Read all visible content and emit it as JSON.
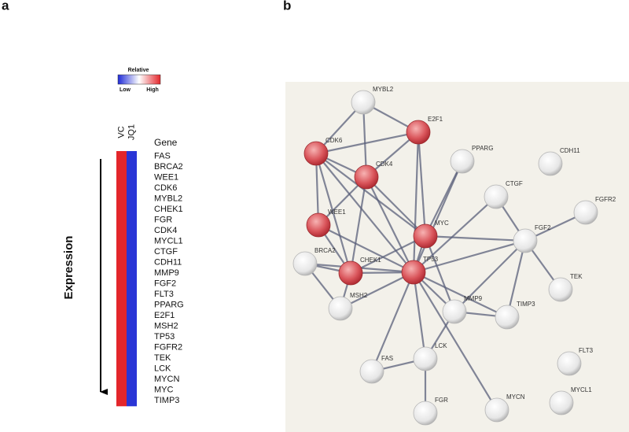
{
  "panel_a": {
    "label": "a",
    "legend": {
      "title": "Relative",
      "low": "Low",
      "high": "High"
    },
    "columns": [
      "VC",
      "JQ1"
    ],
    "column_colors": [
      "#e3262b",
      "#2a35d6"
    ],
    "gene_header": "Gene",
    "genes": [
      "FAS",
      "BRCA2",
      "WEE1",
      "CDK6",
      "MYBL2",
      "CHEK1",
      "FGR",
      "CDK4",
      "MYCL1",
      "CTGF",
      "CDH11",
      "MMP9",
      "FGF2",
      "FLT3",
      "PPARG",
      "E2F1",
      "MSH2",
      "TP53",
      "FGFR2",
      "TEK",
      "LCK",
      "MYCN",
      "MYC",
      "TIMP3"
    ],
    "axis_label": "Expression"
  },
  "panel_b": {
    "label": "b",
    "nodes": [
      {
        "label": "MYBL2",
        "highlighted": false
      },
      {
        "label": "E2F1",
        "highlighted": true
      },
      {
        "label": "CDK6",
        "highlighted": true
      },
      {
        "label": "CDK4",
        "highlighted": true
      },
      {
        "label": "PPARG",
        "highlighted": false
      },
      {
        "label": "CDH11",
        "highlighted": false
      },
      {
        "label": "CTGF",
        "highlighted": false
      },
      {
        "label": "FGFR2",
        "highlighted": false
      },
      {
        "label": "WEE1",
        "highlighted": true
      },
      {
        "label": "MYC",
        "highlighted": true
      },
      {
        "label": "FGF2",
        "highlighted": false
      },
      {
        "label": "BRCA2",
        "highlighted": false
      },
      {
        "label": "CHEK1",
        "highlighted": true
      },
      {
        "label": "TP53",
        "highlighted": true
      },
      {
        "label": "TEK",
        "highlighted": false
      },
      {
        "label": "MSH2",
        "highlighted": false
      },
      {
        "label": "MMP9",
        "highlighted": false
      },
      {
        "label": "TIMP3",
        "highlighted": false
      },
      {
        "label": "LCK",
        "highlighted": false
      },
      {
        "label": "FLT3",
        "highlighted": false
      },
      {
        "label": "FAS",
        "highlighted": false
      },
      {
        "label": "MYCN",
        "highlighted": false
      },
      {
        "label": "MYCL1",
        "highlighted": false
      },
      {
        "label": "FGR",
        "highlighted": false
      }
    ],
    "edges": [
      [
        0,
        1
      ],
      [
        0,
        2
      ],
      [
        0,
        3
      ],
      [
        1,
        2
      ],
      [
        1,
        3
      ],
      [
        1,
        9
      ],
      [
        1,
        13
      ],
      [
        2,
        3
      ],
      [
        2,
        8
      ],
      [
        2,
        13
      ],
      [
        2,
        12
      ],
      [
        2,
        9
      ],
      [
        3,
        8
      ],
      [
        3,
        13
      ],
      [
        3,
        9
      ],
      [
        3,
        12
      ],
      [
        4,
        13
      ],
      [
        4,
        9
      ],
      [
        6,
        13
      ],
      [
        6,
        10
      ],
      [
        7,
        10
      ],
      [
        9,
        13
      ],
      [
        9,
        10
      ],
      [
        9,
        16
      ],
      [
        9,
        12
      ],
      [
        10,
        13
      ],
      [
        10,
        14
      ],
      [
        10,
        16
      ],
      [
        10,
        17
      ],
      [
        8,
        12
      ],
      [
        8,
        13
      ],
      [
        11,
        12
      ],
      [
        11,
        13
      ],
      [
        11,
        15
      ],
      [
        12,
        13
      ],
      [
        12,
        15
      ],
      [
        13,
        15
      ],
      [
        13,
        16
      ],
      [
        13,
        18
      ],
      [
        13,
        20
      ],
      [
        13,
        21
      ],
      [
        13,
        17
      ],
      [
        16,
        17
      ],
      [
        16,
        18
      ],
      [
        18,
        20
      ],
      [
        18,
        23
      ]
    ]
  }
}
